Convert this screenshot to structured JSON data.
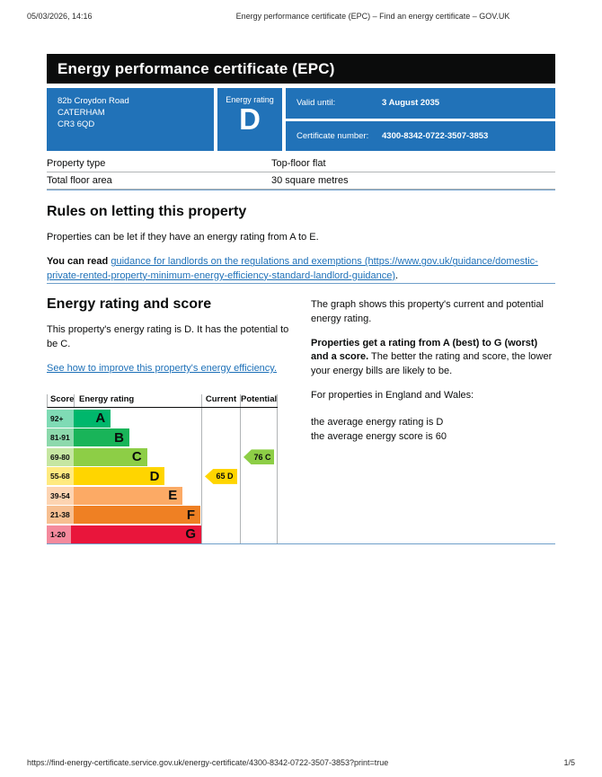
{
  "print_header": {
    "datetime": "05/03/2026, 14:16",
    "doc_title": "Energy performance certificate (EPC) – Find an energy certificate – GOV.UK"
  },
  "print_footer": {
    "url": "https://find-energy-certificate.service.gov.uk/energy-certificate/4300-8342-0722-3507-3853?print=true",
    "page_indicator": "1/5"
  },
  "banner": {
    "title": "Energy performance certificate (EPC)"
  },
  "summary": {
    "address_lines": [
      "82b Croydon Road",
      "CATERHAM",
      "CR3 6QD"
    ],
    "energy_rating_label": "Energy rating",
    "energy_rating": "D",
    "valid_until_label": "Valid until:",
    "valid_until_value": "3 August 2035",
    "certificate_number_label": "Certificate number:",
    "certificate_number_value": "4300-8342-0722-3507-3853",
    "box_color": "#2172b8"
  },
  "key_facts": {
    "rows": [
      {
        "label": "Property type",
        "value": "Top-floor flat"
      },
      {
        "label": "Total floor area",
        "value": "30 square metres"
      }
    ]
  },
  "letting": {
    "heading": "Rules on letting this property",
    "paragraph": "Properties can be let if they have an energy rating from A to E.",
    "read_prefix": "You can read ",
    "link_text": "guidance for landlords on the regulations and exemptions (https://www.gov.uk/guidance/domestic-private-rented-property-minimum-energy-efficiency-standard-landlord-guidance)",
    "read_suffix": "."
  },
  "rating_section": {
    "heading": "Energy rating and score",
    "intro": "This property's energy rating is D. It has the potential to be C.",
    "improve_link": "See how to improve this property's energy efficiency.",
    "graph_caption": "The graph shows this property's current and potential energy rating.",
    "explain_bold": "Properties get a rating from A (best) to G (worst) and a score.",
    "explain_rest": " The better the rating and score, the lower your energy bills are likely to be.",
    "region_line": "For properties in England and Wales:",
    "average_lines": [
      "the average energy rating is D",
      "the average energy score is 60"
    ]
  },
  "epc_chart": {
    "type": "bar",
    "headers": {
      "score": "Score",
      "rating": "Energy rating",
      "current": "Current",
      "potential": "Potential"
    },
    "bands": [
      {
        "score_range": "92+",
        "letter": "A",
        "color": "#00b76c",
        "tint": "#7fdbb5",
        "width_pct": 24
      },
      {
        "score_range": "81-91",
        "letter": "B",
        "color": "#19b459",
        "tint": "#8cd9ac",
        "width_pct": 36
      },
      {
        "score_range": "69-80",
        "letter": "C",
        "color": "#8dce46",
        "tint": "#c6e6a2",
        "width_pct": 47.5
      },
      {
        "score_range": "55-68",
        "letter": "D",
        "color": "#ffd500",
        "tint": "#ffea80",
        "width_pct": 59
      },
      {
        "score_range": "39-54",
        "letter": "E",
        "color": "#fcaa65",
        "tint": "#fdd4b2",
        "width_pct": 70.5
      },
      {
        "score_range": "21-38",
        "letter": "F",
        "color": "#ef8023",
        "tint": "#f7bf91",
        "width_pct": 82
      },
      {
        "score_range": "1-20",
        "letter": "G",
        "color": "#e9153b",
        "tint": "#f48a9d",
        "width_pct": 95
      }
    ],
    "current": {
      "label": "65 D",
      "score": 65,
      "band": "D",
      "color": "#ffd500",
      "row_index": 3
    },
    "potential": {
      "label": "76 C",
      "score": 76,
      "band": "C",
      "color": "#8dce46",
      "row_index": 2
    }
  }
}
